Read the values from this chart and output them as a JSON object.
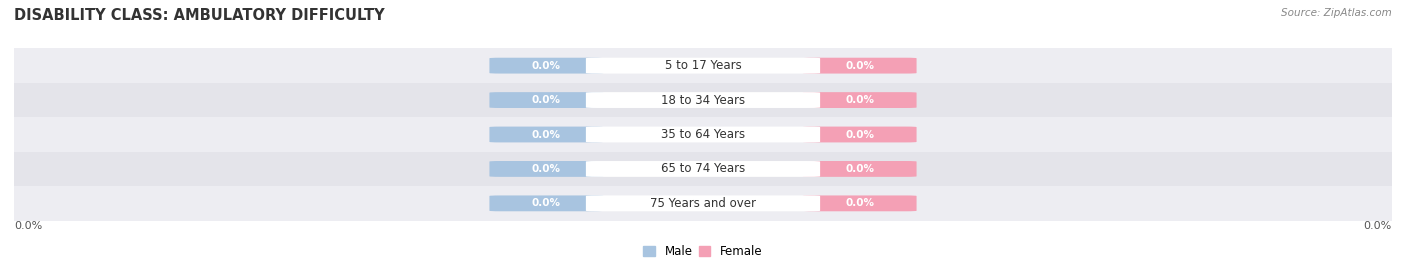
{
  "title": "DISABILITY CLASS: AMBULATORY DIFFICULTY",
  "source": "Source: ZipAtlas.com",
  "categories": [
    "5 to 17 Years",
    "18 to 34 Years",
    "35 to 64 Years",
    "65 to 74 Years",
    "75 Years and over"
  ],
  "male_values": [
    0.0,
    0.0,
    0.0,
    0.0,
    0.0
  ],
  "female_values": [
    0.0,
    0.0,
    0.0,
    0.0,
    0.0
  ],
  "male_color": "#a8c4e0",
  "female_color": "#f4a0b5",
  "male_label": "Male",
  "female_label": "Female",
  "row_bg_colors": [
    "#ededf2",
    "#e4e4ea"
  ],
  "title_fontsize": 10.5,
  "cat_fontsize": 8.5,
  "val_fontsize": 7.5,
  "xlim_left": "0.0%",
  "xlim_right": "0.0%",
  "background_color": "#ffffff",
  "source_color": "#888888",
  "title_color": "#333333",
  "val_text_color": "#ffffff",
  "cat_text_color": "#333333"
}
